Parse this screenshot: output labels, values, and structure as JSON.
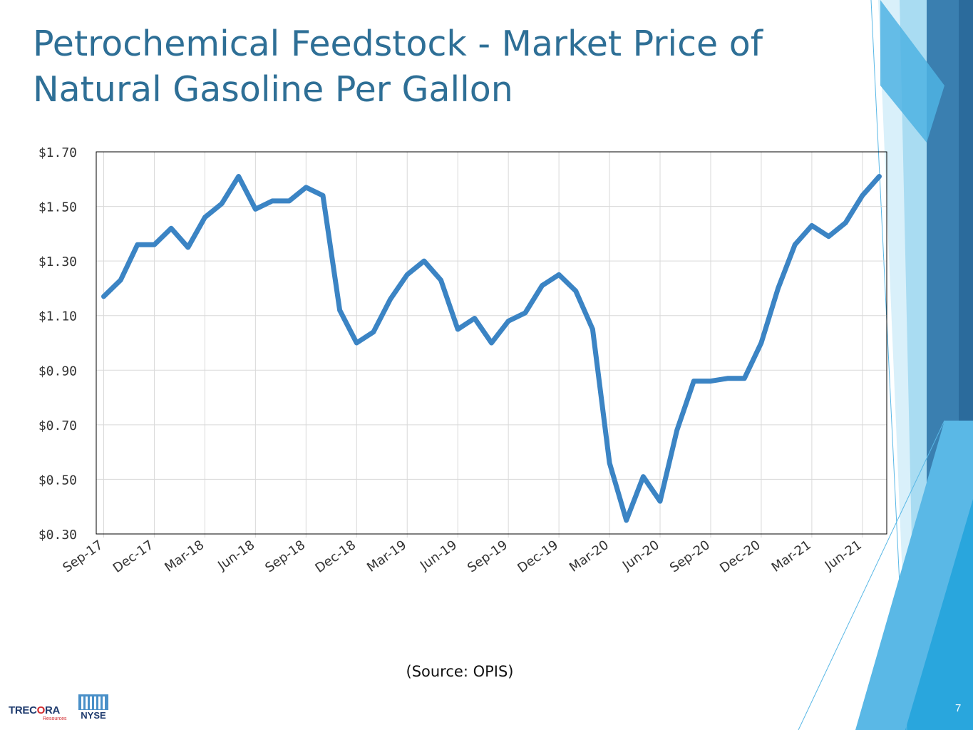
{
  "slide": {
    "title": "Petrochemical Feedstock - Market Price of Natural Gasoline Per Gallon",
    "source": "(Source: OPIS)",
    "page_number": "7",
    "logo_text": {
      "pre": "TREC",
      "o": "O",
      "post": "RA",
      "sub": "Resources"
    },
    "nyse_text": "NYSE"
  },
  "colors": {
    "title": "#2e6f96",
    "line": "#3b84c4",
    "grid": "#d9d9d9",
    "axis": "#000000",
    "accent_dark": "#2b6b9c",
    "accent_light": "#5ab8e6"
  },
  "chart_data": {
    "type": "line",
    "title": "",
    "xlabel": "",
    "ylabel": "",
    "ylim": [
      0.3,
      1.7
    ],
    "yticks": [
      0.3,
      0.5,
      0.7,
      0.9,
      1.1,
      1.3,
      1.5,
      1.7
    ],
    "ytick_labels": [
      "$0.30",
      "$0.50",
      "$0.70",
      "$0.90",
      "$1.10",
      "$1.30",
      "$1.50",
      "$1.70"
    ],
    "xtick_labels": [
      "Sep-17",
      "Dec-17",
      "Mar-18",
      "Jun-18",
      "Sep-18",
      "Dec-18",
      "Mar-19",
      "Jun-19",
      "Sep-19",
      "Dec-19",
      "Mar-20",
      "Jun-20",
      "Sep-20",
      "Dec-20",
      "Mar-21",
      "Jun-21"
    ],
    "grid": true,
    "legend": "none",
    "x": [
      "Sep-17",
      "Oct-17",
      "Nov-17",
      "Dec-17",
      "Jan-18",
      "Feb-18",
      "Mar-18",
      "Apr-18",
      "May-18",
      "Jun-18",
      "Jul-18",
      "Aug-18",
      "Sep-18",
      "Oct-18",
      "Nov-18",
      "Dec-18",
      "Jan-19",
      "Feb-19",
      "Mar-19",
      "Apr-19",
      "May-19",
      "Jun-19",
      "Jul-19",
      "Aug-19",
      "Sep-19",
      "Oct-19",
      "Nov-19",
      "Dec-19",
      "Jan-20",
      "Feb-20",
      "Mar-20",
      "Apr-20",
      "May-20",
      "Jun-20",
      "Jul-20",
      "Aug-20",
      "Sep-20",
      "Oct-20",
      "Nov-20",
      "Dec-20",
      "Jan-21",
      "Feb-21",
      "Mar-21",
      "Apr-21",
      "May-21",
      "Jun-21",
      "Jul-21"
    ],
    "series": [
      {
        "values": [
          1.17,
          1.23,
          1.36,
          1.36,
          1.42,
          1.35,
          1.46,
          1.51,
          1.61,
          1.49,
          1.52,
          1.52,
          1.57,
          1.54,
          1.12,
          1.0,
          1.04,
          1.16,
          1.25,
          1.3,
          1.23,
          1.05,
          1.09,
          1.0,
          1.08,
          1.11,
          1.21,
          1.25,
          1.19,
          1.05,
          0.56,
          0.35,
          0.51,
          0.42,
          0.68,
          0.86,
          0.86,
          0.87,
          0.87,
          1.0,
          1.2,
          1.36,
          1.43,
          1.39,
          1.44,
          1.54,
          1.61
        ]
      }
    ]
  }
}
